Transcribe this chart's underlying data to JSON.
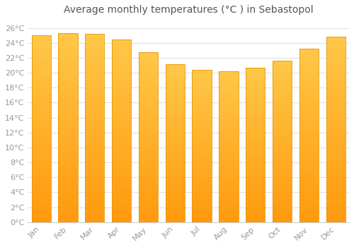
{
  "title": "Average monthly temperatures (°C ) in Sebastopol",
  "months": [
    "Jan",
    "Feb",
    "Mar",
    "Apr",
    "May",
    "Jun",
    "Jul",
    "Aug",
    "Sep",
    "Oct",
    "Nov",
    "Dec"
  ],
  "values": [
    25.0,
    25.3,
    25.2,
    24.5,
    22.8,
    21.1,
    20.4,
    20.2,
    20.7,
    21.6,
    23.2,
    24.8
  ],
  "bar_color_top": "#FFC04D",
  "bar_color_bottom": "#FFA000",
  "bar_edge_color": "#E89500",
  "ylim": [
    0,
    27
  ],
  "ytick_step": 2,
  "background_color": "#FFFFFF",
  "plot_bg_color": "#FFFFFF",
  "grid_color": "#E0E0E0",
  "title_fontsize": 10,
  "tick_fontsize": 8,
  "title_color": "#555555",
  "tick_color": "#999999"
}
